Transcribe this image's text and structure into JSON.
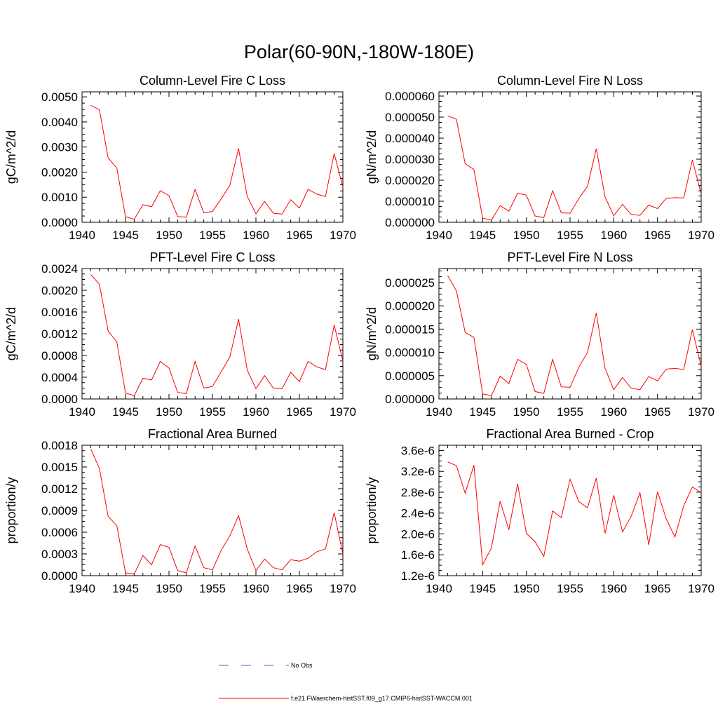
{
  "figure_title": "Polar(60-90N,-180W-180E)",
  "legend": {
    "obs_label": "No Obs",
    "obs_color": "#5a5acd",
    "model_label": "f.e21.FWaerchem-histSST.f09_g17.CMIP6-histSST-WACCM.001",
    "model_color": "#ff0000"
  },
  "chart_data": [
    {
      "type": "line",
      "title": "Column-Level Fire C Loss",
      "ylabel": "gC/m^2/d",
      "xlim": [
        1940,
        1970
      ],
      "ylim": [
        0,
        0.0052
      ],
      "xticks": [
        1940,
        1945,
        1950,
        1955,
        1960,
        1965,
        1970
      ],
      "yticks": [
        0,
        0.001,
        0.002,
        0.003,
        0.004,
        0.005
      ],
      "yticklabels": [
        "0.0000",
        "0.0010",
        "0.0020",
        "0.0030",
        "0.0040",
        "0.0050"
      ],
      "series": [
        {
          "x": [
            1941,
            1942,
            1943,
            1944,
            1945,
            1946,
            1947,
            1948,
            1949,
            1950,
            1951,
            1952,
            1953,
            1954,
            1955,
            1956,
            1957,
            1958,
            1959,
            1960,
            1961,
            1962,
            1963,
            1964,
            1965,
            1966,
            1967,
            1968,
            1969,
            1970
          ],
          "values": [
            0.00466,
            0.00449,
            0.00257,
            0.00216,
            0.00022,
            0.00012,
            0.0007,
            0.00062,
            0.00126,
            0.00106,
            0.00023,
            0.0002,
            0.00131,
            0.00038,
            0.00043,
            0.00093,
            0.00147,
            0.00294,
            0.00103,
            0.00034,
            0.00083,
            0.00036,
            0.00033,
            0.0009,
            0.00057,
            0.00131,
            0.00112,
            0.00103,
            0.00274,
            0.0014
          ]
        }
      ]
    },
    {
      "type": "line",
      "title": "Column-Level Fire N Loss",
      "ylabel": "gN/m^2/d",
      "xlim": [
        1940,
        1970
      ],
      "ylim": [
        0,
        6.2e-05
      ],
      "xticks": [
        1940,
        1945,
        1950,
        1955,
        1960,
        1965,
        1970
      ],
      "yticks": [
        0,
        1e-05,
        2e-05,
        3e-05,
        4e-05,
        5e-05,
        6e-05
      ],
      "yticklabels": [
        "0.000000",
        "0.000010",
        "0.000020",
        "0.000030",
        "0.000040",
        "0.000050",
        "0.000060"
      ],
      "series": [
        {
          "x": [
            1941,
            1942,
            1943,
            1944,
            1945,
            1946,
            1947,
            1948,
            1949,
            1950,
            1951,
            1952,
            1953,
            1954,
            1955,
            1956,
            1957,
            1958,
            1959,
            1960,
            1961,
            1962,
            1963,
            1964,
            1965,
            1966,
            1967,
            1968,
            1969,
            1970
          ],
          "values": [
            5.06e-05,
            4.9e-05,
            2.78e-05,
            2.51e-05,
            2e-06,
            1e-06,
            7.9e-06,
            5.3e-06,
            1.38e-05,
            1.29e-05,
            3e-06,
            2.2e-06,
            1.5e-05,
            4.5e-06,
            4.3e-06,
            1.13e-05,
            1.71e-05,
            3.5e-05,
            1.2e-05,
            3.1e-06,
            8.5e-06,
            3.7e-06,
            3.3e-06,
            8.2e-06,
            6.5e-06,
            1.13e-05,
            1.17e-05,
            1.16e-05,
            2.96e-05,
            1.35e-05
          ]
        }
      ]
    },
    {
      "type": "line",
      "title": "PFT-Level Fire C Loss",
      "ylabel": "gC/m^2/d",
      "xlim": [
        1940,
        1970
      ],
      "ylim": [
        0,
        0.0024
      ],
      "xticks": [
        1940,
        1945,
        1950,
        1955,
        1960,
        1965,
        1970
      ],
      "yticks": [
        0,
        0.0004,
        0.0008,
        0.0012,
        0.0016,
        0.002,
        0.0024
      ],
      "yticklabels": [
        "0.0000",
        "0.0004",
        "0.0008",
        "0.0012",
        "0.0016",
        "0.0020",
        "0.0024"
      ],
      "series": [
        {
          "x": [
            1941,
            1942,
            1943,
            1944,
            1945,
            1946,
            1947,
            1948,
            1949,
            1950,
            1951,
            1952,
            1953,
            1954,
            1955,
            1956,
            1957,
            1958,
            1959,
            1960,
            1961,
            1962,
            1963,
            1964,
            1965,
            1966,
            1967,
            1968,
            1969,
            1970
          ],
          "values": [
            0.00229,
            0.00211,
            0.00125,
            0.00105,
            0.00011,
            6e-05,
            0.00038,
            0.00035,
            0.00069,
            0.00057,
            0.00012,
            0.0001,
            0.00069,
            0.0002,
            0.00023,
            0.0005,
            0.00077,
            0.00147,
            0.00053,
            0.00019,
            0.00043,
            0.0002,
            0.00019,
            0.00049,
            0.00032,
            0.00069,
            0.00059,
            0.00054,
            0.00136,
            0.0007
          ]
        }
      ]
    },
    {
      "type": "line",
      "title": "PFT-Level Fire N Loss",
      "ylabel": "gN/m^2/d",
      "xlim": [
        1940,
        1970
      ],
      "ylim": [
        0,
        2.8e-05
      ],
      "xticks": [
        1940,
        1945,
        1950,
        1955,
        1960,
        1965,
        1970
      ],
      "yticks": [
        0,
        5e-06,
        1e-05,
        1.5e-05,
        2e-05,
        2.5e-05
      ],
      "yticklabels": [
        "0.000000",
        "0.000005",
        "0.000010",
        "0.000015",
        "0.000020",
        "0.000025"
      ],
      "series": [
        {
          "x": [
            1941,
            1942,
            1943,
            1944,
            1945,
            1946,
            1947,
            1948,
            1949,
            1950,
            1951,
            1952,
            1953,
            1954,
            1955,
            1956,
            1957,
            1958,
            1959,
            1960,
            1961,
            1962,
            1963,
            1964,
            1965,
            1966,
            1967,
            1968,
            1969,
            1970
          ],
          "values": [
            2.65e-05,
            2.32e-05,
            1.43e-05,
            1.32e-05,
            1.1e-06,
            7e-07,
            4.9e-06,
            3.3e-06,
            8.5e-06,
            7.4e-06,
            1.6e-06,
            1.2e-06,
            8.5e-06,
            2.6e-06,
            2.5e-06,
            6.8e-06,
            1e-05,
            1.85e-05,
            6.6e-06,
            2e-06,
            4.6e-06,
            2.3e-06,
            2e-06,
            4.8e-06,
            3.9e-06,
            6.4e-06,
            6.6e-06,
            6.3e-06,
            1.49e-05,
            7e-06
          ]
        }
      ]
    },
    {
      "type": "line",
      "title": "Fractional Area Burned",
      "ylabel": "proportion/y",
      "xlim": [
        1940,
        1970
      ],
      "ylim": [
        0,
        0.0018
      ],
      "xticks": [
        1940,
        1945,
        1950,
        1955,
        1960,
        1965,
        1970
      ],
      "yticks": [
        0,
        0.0003,
        0.0006,
        0.0009,
        0.0012,
        0.0015,
        0.0018
      ],
      "yticklabels": [
        "0.0000",
        "0.0003",
        "0.0006",
        "0.0009",
        "0.0012",
        "0.0015",
        "0.0018"
      ],
      "series": [
        {
          "x": [
            1941,
            1942,
            1943,
            1944,
            1945,
            1946,
            1947,
            1948,
            1949,
            1950,
            1951,
            1952,
            1953,
            1954,
            1955,
            1956,
            1957,
            1958,
            1959,
            1960,
            1961,
            1962,
            1963,
            1964,
            1965,
            1966,
            1967,
            1968,
            1969,
            1970
          ],
          "values": [
            0.00175,
            0.00148,
            0.00082,
            0.00069,
            4e-05,
            2e-05,
            0.00028,
            0.00015,
            0.00043,
            0.00039,
            7e-05,
            4e-05,
            0.00041,
            0.00011,
            8e-05,
            0.00035,
            0.00055,
            0.00083,
            0.00037,
            7e-05,
            0.00023,
            0.00011,
            8e-05,
            0.00022,
            0.0002,
            0.00024,
            0.00033,
            0.00037,
            0.00087,
            0.0003
          ]
        }
      ]
    },
    {
      "type": "line",
      "title": "Fractional Area Burned - Crop",
      "ylabel": "proportion/y",
      "xlim": [
        1940,
        1970
      ],
      "ylim": [
        1.2e-06,
        3.7e-06
      ],
      "xticks": [
        1940,
        1945,
        1950,
        1955,
        1960,
        1965,
        1970
      ],
      "yticks": [
        1.2e-06,
        1.6e-06,
        2e-06,
        2.4e-06,
        2.8e-06,
        3.2e-06,
        3.6e-06
      ],
      "yticklabels": [
        "1.2e-6",
        "1.6e-6",
        "2.0e-6",
        "2.4e-6",
        "2.8e-6",
        "3.2e-6",
        "3.6e-6"
      ],
      "series": [
        {
          "x": [
            1941,
            1942,
            1943,
            1944,
            1945,
            1946,
            1947,
            1948,
            1949,
            1950,
            1951,
            1952,
            1953,
            1954,
            1955,
            1956,
            1957,
            1958,
            1959,
            1960,
            1961,
            1962,
            1963,
            1964,
            1965,
            1966,
            1967,
            1968,
            1969,
            1970
          ],
          "values": [
            3.38e-06,
            3.31e-06,
            2.78e-06,
            3.32e-06,
            1.41e-06,
            1.73e-06,
            2.63e-06,
            2.08e-06,
            2.96e-06,
            2.01e-06,
            1.85e-06,
            1.57e-06,
            2.44e-06,
            2.31e-06,
            3.05e-06,
            2.62e-06,
            2.5e-06,
            3.07e-06,
            2.01e-06,
            2.74e-06,
            2.04e-06,
            2.34e-06,
            2.79e-06,
            1.79e-06,
            2.81e-06,
            2.29e-06,
            1.94e-06,
            2.54e-06,
            2.9e-06,
            2.79e-06
          ]
        }
      ]
    }
  ]
}
